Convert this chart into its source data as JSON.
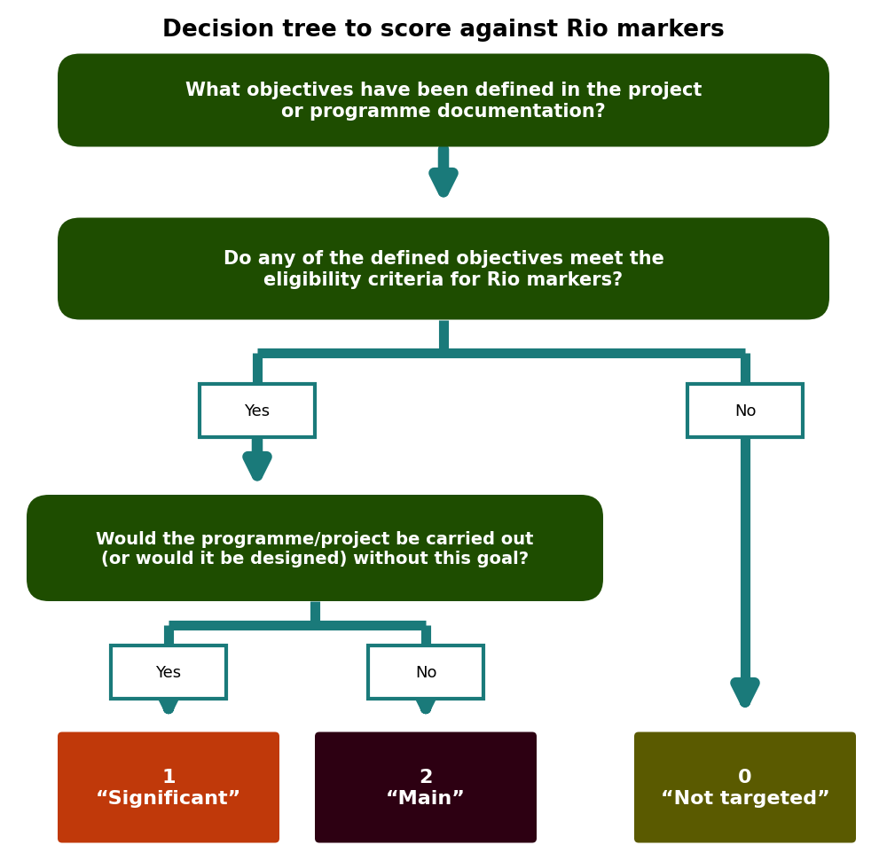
{
  "title": "Decision tree to score against Rio markers",
  "title_fontsize": 19,
  "title_fontweight": "bold",
  "bg_color": "#ffffff",
  "dark_green": "#1e4d00",
  "teal": "#1a7a7a",
  "orange_red": "#c0390a",
  "dark_maroon": "#2d0012",
  "olive_green": "#5a5a00",
  "box1_text": "What objectives have been defined in the project\nor programme documentation?",
  "box2_text": "Do any of the defined objectives meet the\neligibility criteria for Rio markers?",
  "box3_text": "Would the programme/project be carried out\n(or would it be designed) without this goal?",
  "yes1_text": "Yes",
  "no1_text": "No",
  "yes2_text": "Yes",
  "no2_text": "No",
  "result1_num": "1",
  "result1_label": "“Significant”",
  "result2_num": "2",
  "result2_label": "“Main”",
  "result3_num": "0",
  "result3_label": "“Not targeted”",
  "text_color_white": "#ffffff",
  "text_color_black": "#000000"
}
